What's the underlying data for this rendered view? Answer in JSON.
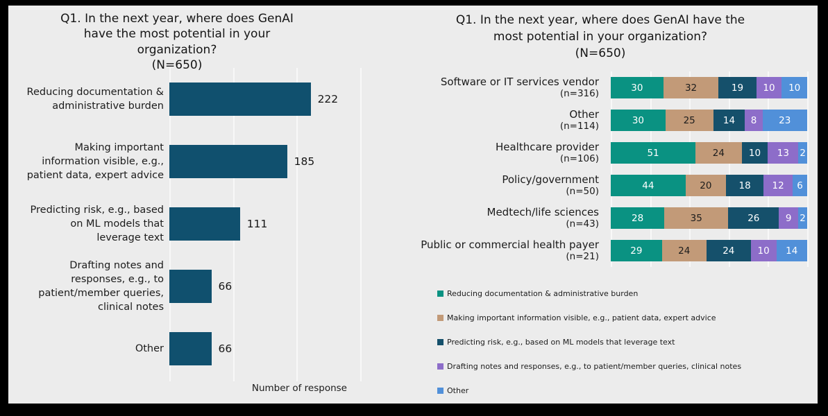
{
  "page": {
    "frame_color": "#000000",
    "canvas_bg": "#ececec"
  },
  "palette": {
    "teal": "#0a9282",
    "tan": "#c29a78",
    "navy": "#15506b",
    "purple": "#8d6dc9",
    "blue": "#5190d9",
    "left_bar": "#10506e",
    "gridline": "#f8f8f8",
    "text": "#1b1b1b"
  },
  "left_chart": {
    "title": "Q1. In the next year, where does GenAI\nhave the most potential in your\norganization?\n(N=650)",
    "xlabel": "Number of response",
    "bars": [
      {
        "label": "Reducing documentation &\nadministrative burden",
        "value": 222
      },
      {
        "label": "Making important\ninformation visible, e.g.,\npatient data, expert advice",
        "value": 185
      },
      {
        "label": "Predicting risk, e.g., based\non ML models that\nleverage text",
        "value": 111
      },
      {
        "label": "Drafting notes and\nresponses, e.g., to\npatient/member queries,\nclinical notes",
        "value": 66
      },
      {
        "label": "Other",
        "value": 66
      }
    ],
    "axis": {
      "min": 0,
      "max": 300,
      "gridline_interval": 100
    }
  },
  "right_chart": {
    "title": "Q1. In the next year, where does GenAI have the\nmost potential in your organization?\n(N=650)",
    "series_order": [
      "teal",
      "tan",
      "navy",
      "purple",
      "blue"
    ],
    "segment_label_colors": [
      "#ffffff",
      "#1c1c1c",
      "#ffffff",
      "#ffffff",
      "#ffffff"
    ],
    "rows": [
      {
        "label": "Software or IT services vendor",
        "n": "(n=316)",
        "values": [
          30,
          32,
          19,
          10,
          10
        ]
      },
      {
        "label": "Other",
        "n": "(n=114)",
        "values": [
          30,
          25,
          14,
          8,
          23
        ]
      },
      {
        "label": "Healthcare provider",
        "n": "(n=106)",
        "values": [
          51,
          24,
          10,
          13,
          2
        ]
      },
      {
        "label": "Policy/government",
        "n": "(n=50)",
        "values": [
          44,
          20,
          18,
          12,
          6
        ]
      },
      {
        "label": "Medtech/life sciences",
        "n": "(n=43)",
        "values": [
          28,
          35,
          26,
          9,
          2
        ]
      },
      {
        "label": "Public or commercial health payer",
        "n": "(n=21)",
        "values": [
          29,
          24,
          24,
          10,
          14
        ]
      }
    ],
    "legend": [
      {
        "color": "teal",
        "label": "Reducing documentation & administrative burden"
      },
      {
        "color": "tan",
        "label": "Making important information visible, e.g., patient data, expert advice"
      },
      {
        "color": "navy",
        "label": "Predicting risk, e.g., based on ML models that leverage text"
      },
      {
        "color": "purple",
        "label": "Drafting notes and responses, e.g., to patient/member queries, clinical notes"
      },
      {
        "color": "blue",
        "label": "Other"
      }
    ]
  },
  "chart_data": [
    {
      "type": "bar",
      "orientation": "horizontal",
      "title": "Q1. In the next year, where does GenAI have the most potential in your organization? (N=650)",
      "xlabel": "Number of response",
      "ylabel": "",
      "categories": [
        "Reducing documentation & administrative burden",
        "Making important information visible, e.g., patient data, expert advice",
        "Predicting risk, e.g., based on ML models that leverage text",
        "Drafting notes and responses, e.g., to patient/member queries, clinical notes",
        "Other"
      ],
      "values": [
        222,
        185,
        111,
        66,
        66
      ],
      "xlim": [
        0,
        300
      ],
      "grid": true,
      "bar_color": "#10506e",
      "data_labels": true
    },
    {
      "type": "bar",
      "orientation": "horizontal",
      "stacked": true,
      "title": "Q1. In the next year, where does GenAI have the most potential in your organization? (N=650)",
      "categories": [
        "Software or IT services vendor (n=316)",
        "Other (n=114)",
        "Healthcare provider (n=106)",
        "Policy/government (n=50)",
        "Medtech/life sciences (n=43)",
        "Public or commercial health payer (n=21)"
      ],
      "series": [
        {
          "name": "Reducing documentation & administrative burden",
          "color": "#0a9282",
          "values": [
            30,
            30,
            51,
            44,
            28,
            29
          ]
        },
        {
          "name": "Making important information visible, e.g., patient data, expert advice",
          "color": "#c29a78",
          "values": [
            32,
            25,
            24,
            20,
            35,
            24
          ]
        },
        {
          "name": "Predicting risk, e.g., based on ML models that leverage text",
          "color": "#15506b",
          "values": [
            19,
            14,
            10,
            18,
            26,
            24
          ]
        },
        {
          "name": "Drafting notes and responses, e.g., to patient/member queries, clinical notes",
          "color": "#8d6dc9",
          "values": [
            10,
            8,
            13,
            12,
            9,
            10
          ]
        },
        {
          "name": "Other",
          "color": "#5190d9",
          "values": [
            10,
            23,
            2,
            6,
            2,
            14
          ]
        }
      ],
      "xlim": [
        0,
        100
      ],
      "grid": true,
      "legend_position": "bottom-left",
      "data_labels": true
    }
  ]
}
